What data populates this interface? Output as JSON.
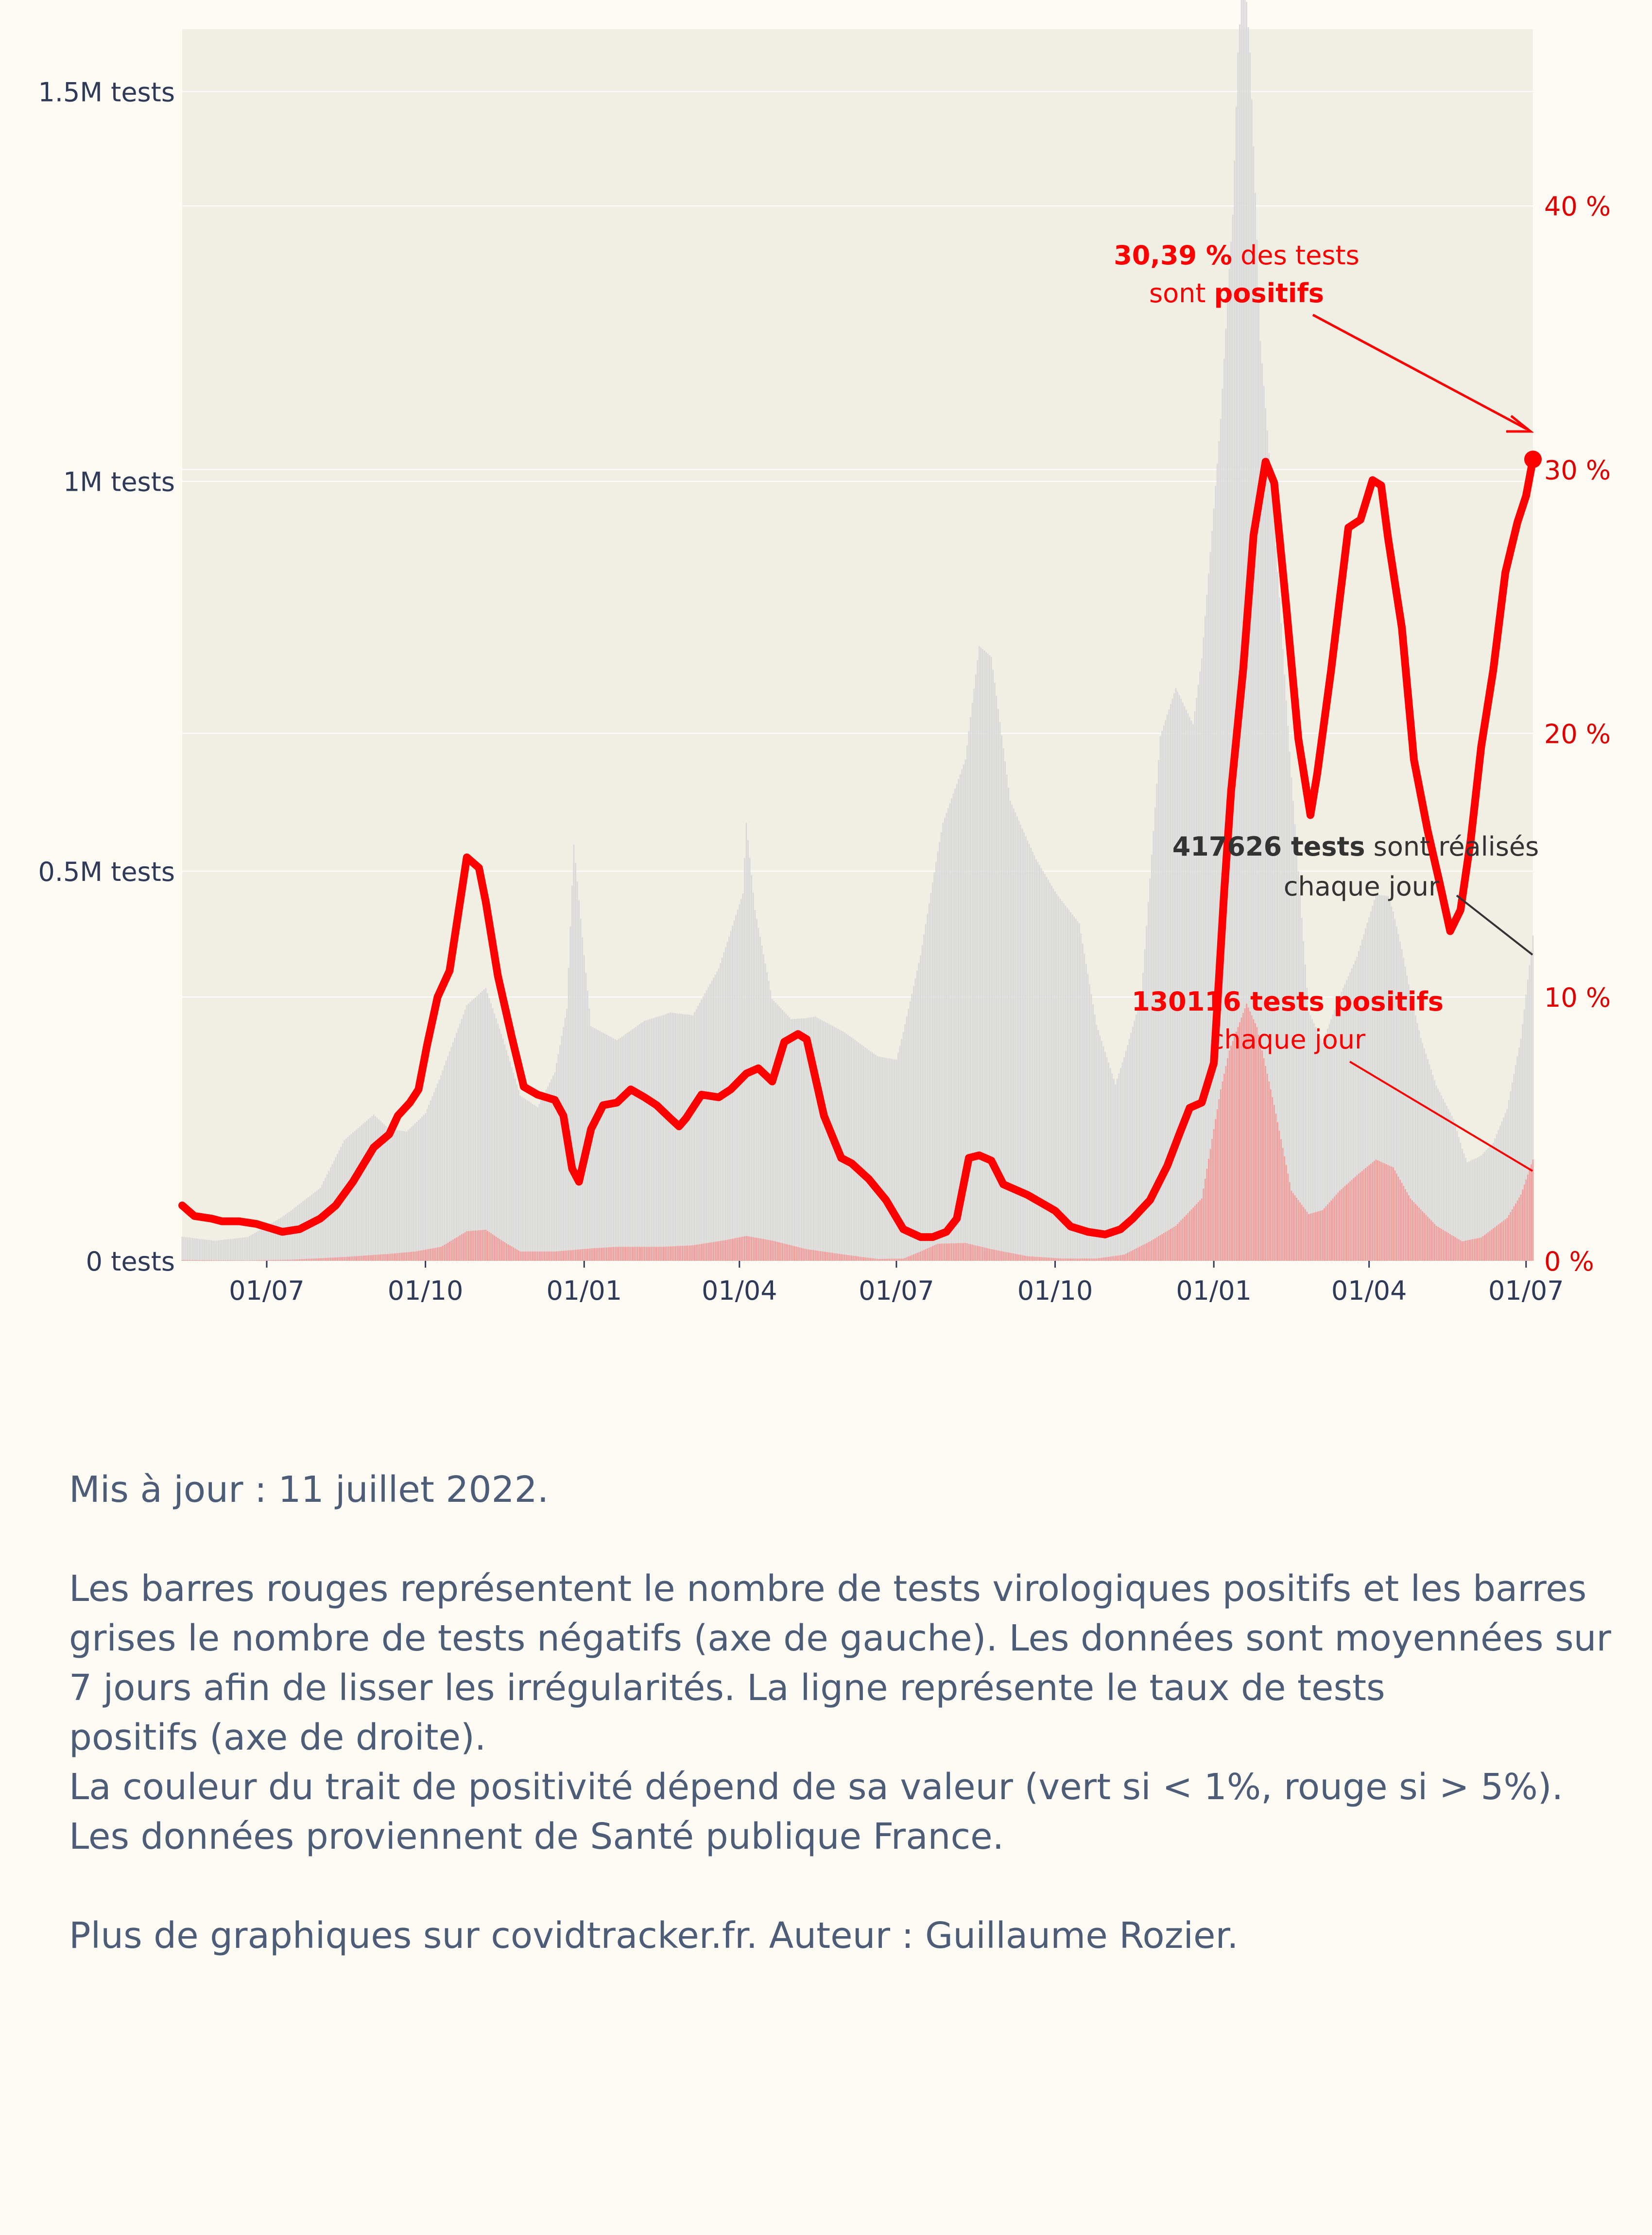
{
  "chart_data": {
    "type": "bar+line",
    "x_tick_labels": [
      "01/07",
      "01/10",
      "01/01",
      "01/04",
      "01/07",
      "01/10",
      "01/01",
      "01/04",
      "01/07"
    ],
    "x_range": [
      "2020-05-13",
      "2022-07-05"
    ],
    "left_axis": {
      "ticks": [
        {
          "value": 0,
          "label": "0 tests"
        },
        {
          "value": 500000,
          "label": "0.5M tests"
        },
        {
          "value": 1000000,
          "label": "1M tests"
        },
        {
          "value": 1500000,
          "label": "1.5M tests"
        }
      ],
      "ylim": [
        0,
        1580000
      ]
    },
    "right_axis": {
      "ticks": [
        {
          "value": 0,
          "label": "0 %"
        },
        {
          "value": 10,
          "label": "10 %"
        },
        {
          "value": 20,
          "label": "20 %"
        },
        {
          "value": 30,
          "label": "30 %"
        },
        {
          "value": 40,
          "label": "40 %"
        }
      ],
      "ylim": [
        0,
        46.7
      ]
    },
    "colors": {
      "plot_bg": "#f1eee4",
      "page_bg": "#fdfbf4",
      "negative_bars": "#d9d9d9",
      "positive_bars": "#ef9c9c",
      "positivity_line": "#ff0000",
      "axis_text": "#2e3a57",
      "right_axis_text": "#e00000",
      "annotation_dark": "#333333"
    },
    "series": [
      {
        "name": "tests négatifs",
        "kind": "bar",
        "points": [
          [
            "2020-05-13",
            30000
          ],
          [
            "2020-06-01",
            25000
          ],
          [
            "2020-06-20",
            30000
          ],
          [
            "2020-07-10",
            55000
          ],
          [
            "2020-08-01",
            90000
          ],
          [
            "2020-08-15",
            150000
          ],
          [
            "2020-09-01",
            180000
          ],
          [
            "2020-09-10",
            160000
          ],
          [
            "2020-09-20",
            155000
          ],
          [
            "2020-10-01",
            175000
          ],
          [
            "2020-10-12",
            230000
          ],
          [
            "2020-10-25",
            290000
          ],
          [
            "2020-11-05",
            310000
          ],
          [
            "2020-11-15",
            260000
          ],
          [
            "2020-11-25",
            200000
          ],
          [
            "2020-12-05",
            185000
          ],
          [
            "2020-12-15",
            230000
          ],
          [
            "2020-12-22",
            310000
          ],
          [
            "2020-12-26",
            520000
          ],
          [
            "2020-12-31",
            400000
          ],
          [
            "2021-01-05",
            285000
          ],
          [
            "2021-01-20",
            265000
          ],
          [
            "2021-02-05",
            290000
          ],
          [
            "2021-02-20",
            300000
          ],
          [
            "2021-03-05",
            295000
          ],
          [
            "2021-03-20",
            350000
          ],
          [
            "2021-04-03",
            440000
          ],
          [
            "2021-04-05",
            530000
          ],
          [
            "2021-04-10",
            420000
          ],
          [
            "2021-04-20",
            310000
          ],
          [
            "2021-05-01",
            290000
          ],
          [
            "2021-05-15",
            300000
          ],
          [
            "2021-06-01",
            285000
          ],
          [
            "2021-06-20",
            260000
          ],
          [
            "2021-07-01",
            255000
          ],
          [
            "2021-07-15",
            380000
          ],
          [
            "2021-07-28",
            540000
          ],
          [
            "2021-08-10",
            620000
          ],
          [
            "2021-08-18",
            770000
          ],
          [
            "2021-08-25",
            760000
          ],
          [
            "2021-09-05",
            580000
          ],
          [
            "2021-09-20",
            510000
          ],
          [
            "2021-10-01",
            470000
          ],
          [
            "2021-10-15",
            430000
          ],
          [
            "2021-10-25",
            300000
          ],
          [
            "2021-11-05",
            220000
          ],
          [
            "2021-11-20",
            320000
          ],
          [
            "2021-12-01",
            640000
          ],
          [
            "2021-12-10",
            690000
          ],
          [
            "2021-12-20",
            620000
          ],
          [
            "2021-12-31",
            780000
          ],
          [
            "2022-01-05",
            860000
          ],
          [
            "2022-01-12",
            1060000
          ],
          [
            "2022-01-15",
            1250000
          ],
          [
            "2022-01-18",
            1340000
          ],
          [
            "2022-01-22",
            1230000
          ],
          [
            "2022-01-28",
            900000
          ],
          [
            "2022-02-05",
            750000
          ],
          [
            "2022-02-15",
            530000
          ],
          [
            "2022-02-25",
            260000
          ],
          [
            "2022-03-05",
            215000
          ],
          [
            "2022-03-15",
            250000
          ],
          [
            "2022-03-25",
            280000
          ],
          [
            "2022-04-05",
            340000
          ],
          [
            "2022-04-12",
            345000
          ],
          [
            "2022-04-20",
            300000
          ],
          [
            "2022-05-01",
            220000
          ],
          [
            "2022-05-10",
            180000
          ],
          [
            "2022-05-20",
            150000
          ],
          [
            "2022-05-28",
            100000
          ],
          [
            "2022-06-05",
            105000
          ],
          [
            "2022-06-12",
            110000
          ],
          [
            "2022-06-20",
            140000
          ],
          [
            "2022-06-28",
            200000
          ],
          [
            "2022-07-05",
            287000
          ]
        ]
      },
      {
        "name": "tests positifs",
        "kind": "bar",
        "points": [
          [
            "2020-05-13",
            1000
          ],
          [
            "2020-06-20",
            500
          ],
          [
            "2020-07-15",
            1500
          ],
          [
            "2020-08-15",
            5000
          ],
          [
            "2020-09-10",
            9000
          ],
          [
            "2020-09-25",
            12000
          ],
          [
            "2020-10-10",
            18000
          ],
          [
            "2020-10-25",
            38000
          ],
          [
            "2020-11-05",
            40000
          ],
          [
            "2020-11-15",
            25000
          ],
          [
            "2020-11-25",
            12000
          ],
          [
            "2020-12-15",
            12000
          ],
          [
            "2021-01-05",
            16000
          ],
          [
            "2021-01-20",
            18000
          ],
          [
            "2021-02-15",
            18000
          ],
          [
            "2021-03-05",
            20000
          ],
          [
            "2021-03-25",
            27000
          ],
          [
            "2021-04-05",
            32000
          ],
          [
            "2021-04-20",
            26000
          ],
          [
            "2021-05-10",
            15000
          ],
          [
            "2021-06-01",
            8000
          ],
          [
            "2021-06-20",
            2500
          ],
          [
            "2021-07-05",
            3000
          ],
          [
            "2021-07-15",
            12000
          ],
          [
            "2021-07-25",
            22000
          ],
          [
            "2021-08-10",
            23000
          ],
          [
            "2021-08-25",
            15000
          ],
          [
            "2021-09-15",
            6000
          ],
          [
            "2021-10-05",
            3000
          ],
          [
            "2021-10-25",
            3000
          ],
          [
            "2021-11-10",
            8000
          ],
          [
            "2021-11-25",
            25000
          ],
          [
            "2021-12-10",
            45000
          ],
          [
            "2021-12-25",
            80000
          ],
          [
            "2022-01-05",
            220000
          ],
          [
            "2022-01-10",
            270000
          ],
          [
            "2022-01-20",
            330000
          ],
          [
            "2022-01-26",
            300000
          ],
          [
            "2022-02-05",
            200000
          ],
          [
            "2022-02-15",
            90000
          ],
          [
            "2022-02-25",
            60000
          ],
          [
            "2022-03-05",
            65000
          ],
          [
            "2022-03-15",
            90000
          ],
          [
            "2022-03-25",
            110000
          ],
          [
            "2022-04-05",
            130000
          ],
          [
            "2022-04-15",
            120000
          ],
          [
            "2022-04-25",
            80000
          ],
          [
            "2022-05-10",
            45000
          ],
          [
            "2022-05-25",
            25000
          ],
          [
            "2022-06-05",
            30000
          ],
          [
            "2022-06-20",
            55000
          ],
          [
            "2022-06-28",
            85000
          ],
          [
            "2022-07-05",
            130116
          ]
        ]
      },
      {
        "name": "taux de positivité",
        "kind": "line",
        "points": [
          [
            "2020-05-13",
            2.1
          ],
          [
            "2020-05-20",
            1.7
          ],
          [
            "2020-05-30",
            1.6
          ],
          [
            "2020-06-05",
            1.5
          ],
          [
            "2020-06-15",
            1.5
          ],
          [
            "2020-06-25",
            1.4
          ],
          [
            "2020-07-10",
            1.1
          ],
          [
            "2020-07-20",
            1.2
          ],
          [
            "2020-08-01",
            1.6
          ],
          [
            "2020-08-10",
            2.1
          ],
          [
            "2020-08-20",
            3.0
          ],
          [
            "2020-09-01",
            4.3
          ],
          [
            "2020-09-10",
            4.8
          ],
          [
            "2020-09-15",
            5.5
          ],
          [
            "2020-09-22",
            6.0
          ],
          [
            "2020-09-27",
            6.5
          ],
          [
            "2020-10-02",
            8.2
          ],
          [
            "2020-10-08",
            10.0
          ],
          [
            "2020-10-15",
            11.0
          ],
          [
            "2020-10-25",
            15.3
          ],
          [
            "2020-11-01",
            14.9
          ],
          [
            "2020-11-05",
            13.6
          ],
          [
            "2020-11-12",
            10.8
          ],
          [
            "2020-11-20",
            8.5
          ],
          [
            "2020-11-27",
            6.6
          ],
          [
            "2020-12-05",
            6.3
          ],
          [
            "2020-12-15",
            6.1
          ],
          [
            "2020-12-20",
            5.5
          ],
          [
            "2020-12-25",
            3.5
          ],
          [
            "2020-12-29",
            3.0
          ],
          [
            "2021-01-05",
            5.0
          ],
          [
            "2021-01-12",
            5.9
          ],
          [
            "2021-01-20",
            6.0
          ],
          [
            "2021-01-28",
            6.5
          ],
          [
            "2021-02-05",
            6.2
          ],
          [
            "2021-02-12",
            5.9
          ],
          [
            "2021-02-20",
            5.4
          ],
          [
            "2021-02-25",
            5.1
          ],
          [
            "2021-03-01",
            5.4
          ],
          [
            "2021-03-10",
            6.3
          ],
          [
            "2021-03-20",
            6.2
          ],
          [
            "2021-03-27",
            6.5
          ],
          [
            "2021-04-05",
            7.1
          ],
          [
            "2021-04-12",
            7.3
          ],
          [
            "2021-04-20",
            6.8
          ],
          [
            "2021-04-27",
            8.3
          ],
          [
            "2021-05-05",
            8.6
          ],
          [
            "2021-05-10",
            8.4
          ],
          [
            "2021-05-20",
            5.5
          ],
          [
            "2021-05-30",
            3.9
          ],
          [
            "2021-06-05",
            3.7
          ],
          [
            "2021-06-15",
            3.1
          ],
          [
            "2021-06-25",
            2.3
          ],
          [
            "2021-07-05",
            1.2
          ],
          [
            "2021-07-15",
            0.9
          ],
          [
            "2021-07-22",
            0.9
          ],
          [
            "2021-07-30",
            1.1
          ],
          [
            "2021-08-05",
            1.6
          ],
          [
            "2021-08-12",
            3.9
          ],
          [
            "2021-08-18",
            4.0
          ],
          [
            "2021-08-25",
            3.8
          ],
          [
            "2021-09-01",
            2.9
          ],
          [
            "2021-09-15",
            2.5
          ],
          [
            "2021-10-01",
            1.9
          ],
          [
            "2021-10-10",
            1.3
          ],
          [
            "2021-10-20",
            1.1
          ],
          [
            "2021-10-30",
            1.0
          ],
          [
            "2021-11-08",
            1.2
          ],
          [
            "2021-11-15",
            1.6
          ],
          [
            "2021-11-25",
            2.3
          ],
          [
            "2021-12-05",
            3.6
          ],
          [
            "2021-12-12",
            4.8
          ],
          [
            "2021-12-18",
            5.8
          ],
          [
            "2021-12-25",
            6.0
          ],
          [
            "2022-01-01",
            7.5
          ],
          [
            "2022-01-07",
            14.0
          ],
          [
            "2022-01-11",
            17.8
          ],
          [
            "2022-01-18",
            22.4
          ],
          [
            "2022-01-24",
            27.5
          ],
          [
            "2022-01-31",
            30.3
          ],
          [
            "2022-02-05",
            29.5
          ],
          [
            "2022-02-12",
            24.8
          ],
          [
            "2022-02-19",
            19.8
          ],
          [
            "2022-02-26",
            16.9
          ],
          [
            "2022-03-02",
            18.5
          ],
          [
            "2022-03-10",
            22.4
          ],
          [
            "2022-03-20",
            27.8
          ],
          [
            "2022-03-27",
            28.1
          ],
          [
            "2022-04-03",
            29.6
          ],
          [
            "2022-04-08",
            29.4
          ],
          [
            "2022-04-12",
            27.4
          ],
          [
            "2022-04-20",
            24.0
          ],
          [
            "2022-04-27",
            19.0
          ],
          [
            "2022-05-05",
            16.3
          ],
          [
            "2022-05-12",
            14.3
          ],
          [
            "2022-05-18",
            12.5
          ],
          [
            "2022-05-24",
            13.3
          ],
          [
            "2022-05-30",
            16.0
          ],
          [
            "2022-06-05",
            19.5
          ],
          [
            "2022-06-12",
            22.4
          ],
          [
            "2022-06-19",
            26.1
          ],
          [
            "2022-06-26",
            28.0
          ],
          [
            "2022-07-01",
            29.0
          ],
          [
            "2022-07-05",
            30.39
          ]
        ]
      }
    ],
    "annotations": [
      {
        "id": "rate",
        "bold": "30,39 %",
        "text1": " des tests",
        "text2": "sont ",
        "bold2": "positifs",
        "target_date": "2022-07-05",
        "target_value": 30.39
      },
      {
        "id": "total",
        "bold": "417626 tests",
        "text1": " sont réalisés",
        "text2": "chaque jour",
        "target_date": "2022-07-05",
        "target_value": 417626
      },
      {
        "id": "positives",
        "bold": "130116 tests positifs",
        "text2": "chaque jour",
        "target_date": "2022-07-05",
        "target_value": 130116
      }
    ]
  },
  "notes": {
    "updated": "Mis à jour : 11 juillet 2022.",
    "line1": "Les barres rouges représentent le nombre de tests virologiques positifs et les barres",
    "line2": "grises le nombre de tests négatifs (axe de gauche). Les données sont moyennées sur",
    "line3": "7 jours afin de lisser les irrégularités. La ligne représente le taux de tests",
    "line4": "positifs (axe de droite).",
    "line5": "La couleur du trait de positivité dépend de sa valeur (vert si < 1%, rouge si > 5%).",
    "line6": "Les données proviennent de Santé publique France.",
    "credits": "Plus de graphiques sur covidtracker.fr. Auteur : Guillaume Rozier."
  }
}
